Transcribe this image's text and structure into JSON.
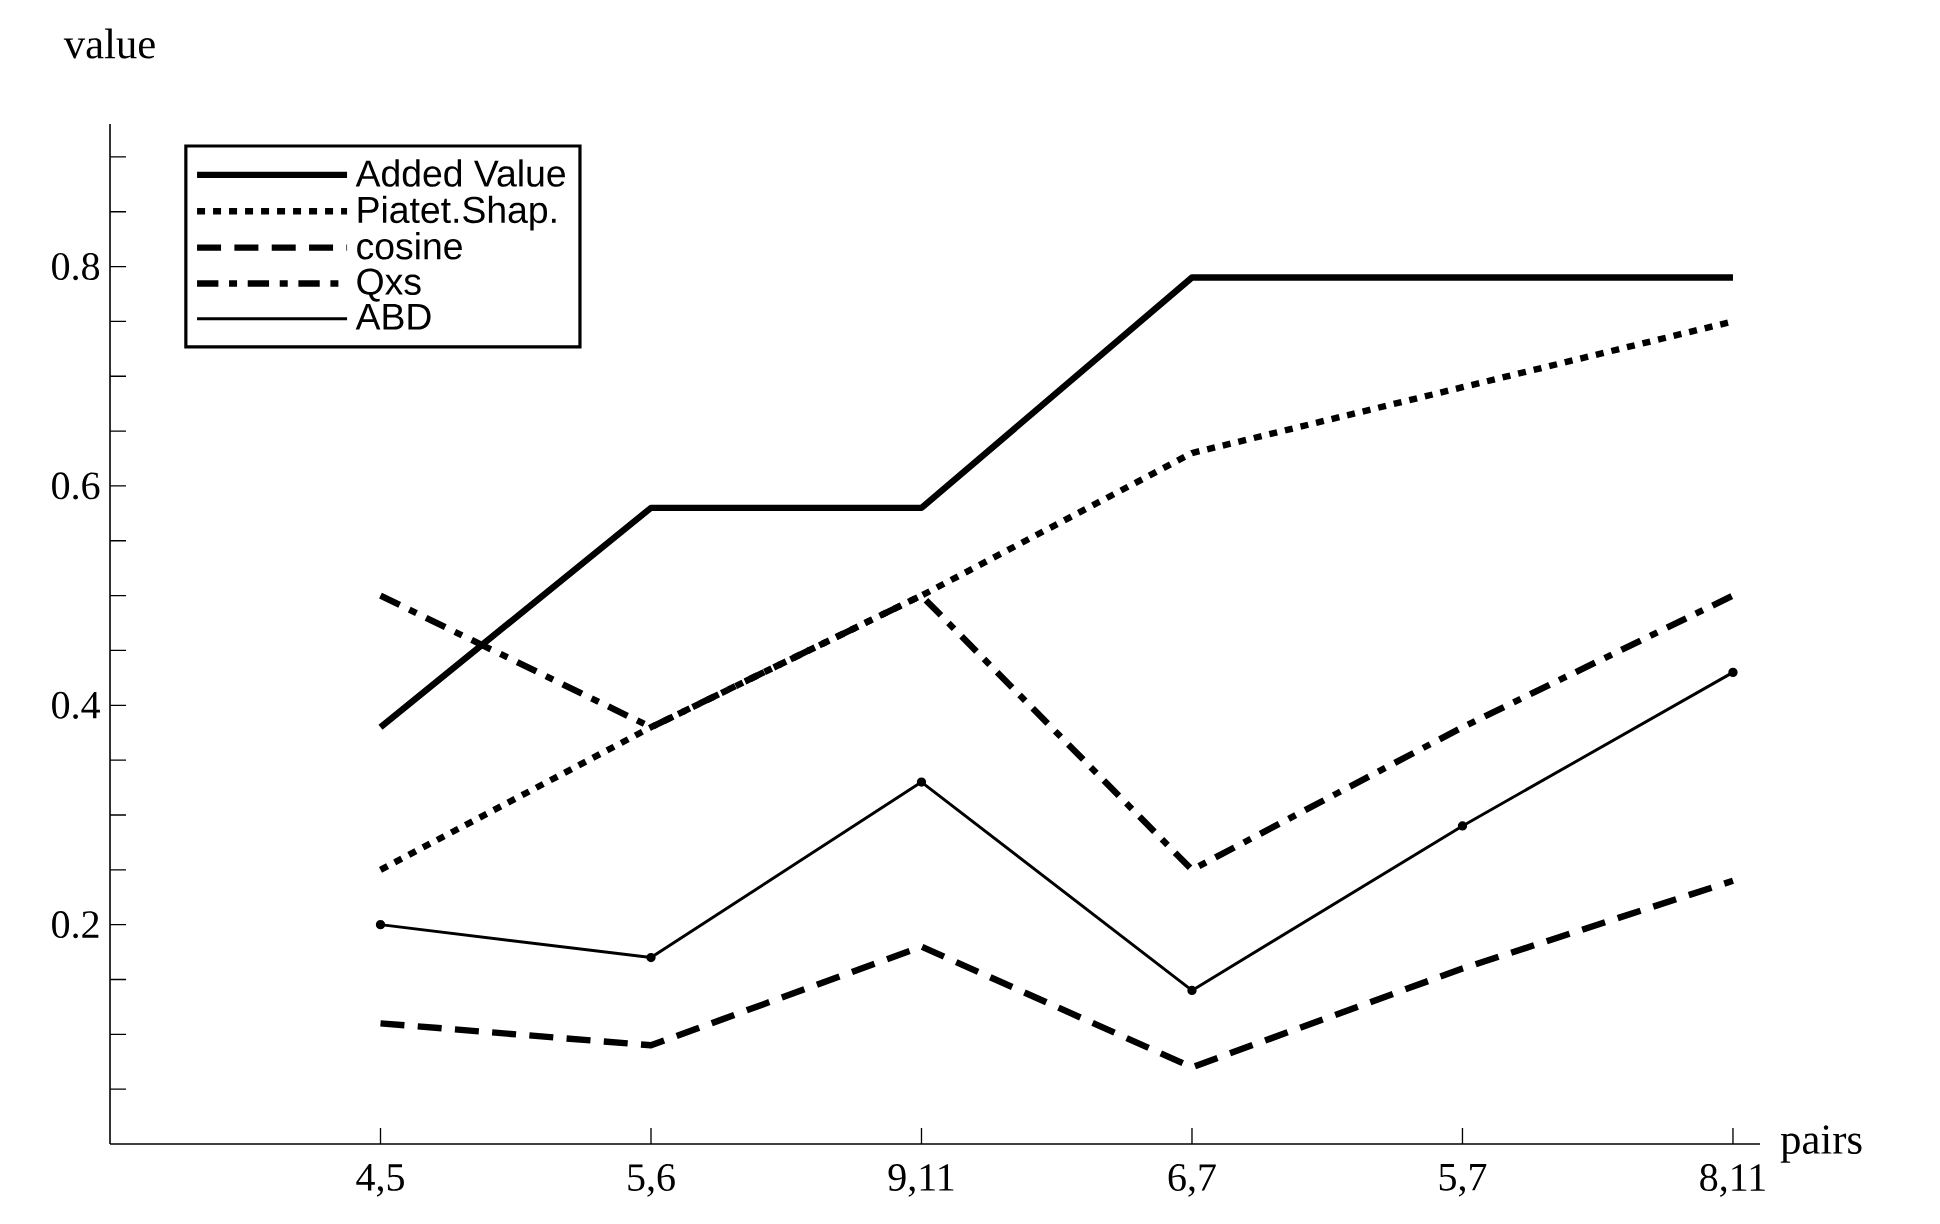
{
  "chart_data": {
    "type": "line",
    "xlabel": "pairs",
    "ylabel": "value",
    "categories": [
      "4,5",
      "5,6",
      "9,11",
      "6,7",
      "5,7",
      "8,11"
    ],
    "series": [
      {
        "name": "Added Value",
        "color": "#000000",
        "line_style": "solid",
        "values": [
          0.38,
          0.58,
          0.58,
          0.79,
          0.79,
          0.79
        ]
      },
      {
        "name": "Piatet.Shap.",
        "color": "#000000",
        "line_style": "dotted",
        "values": [
          0.25,
          0.38,
          0.5,
          0.63,
          0.69,
          0.75
        ]
      },
      {
        "name": "cosine",
        "color": "#000000",
        "line_style": "dashed",
        "values": [
          0.11,
          0.09,
          0.18,
          0.07,
          0.16,
          0.24
        ]
      },
      {
        "name": "Qxs",
        "color": "#000000",
        "line_style": "dashdot",
        "values": [
          0.5,
          0.38,
          0.5,
          0.25,
          0.38,
          0.5
        ]
      },
      {
        "name": "ABD",
        "color": "#000000",
        "line_style": "solid",
        "marker": "circle",
        "values": [
          0.2,
          0.17,
          0.33,
          0.14,
          0.29,
          0.43
        ]
      }
    ],
    "ylim": [
      0,
      0.93
    ],
    "yticks": [
      {
        "value": 0.05,
        "label": null
      },
      {
        "value": 0.1,
        "label": null
      },
      {
        "value": 0.15,
        "label": null
      },
      0.2,
      {
        "value": 0.25,
        "label": null
      },
      {
        "value": 0.3,
        "label": null
      },
      {
        "value": 0.35,
        "label": null
      },
      0.4,
      {
        "value": 0.45,
        "label": null
      },
      {
        "value": 0.5,
        "label": null
      },
      {
        "value": 0.55,
        "label": null
      },
      0.6,
      {
        "value": 0.65,
        "label": null
      },
      {
        "value": 0.7,
        "label": null
      },
      {
        "value": 0.75,
        "label": null
      },
      0.8,
      {
        "value": 0.85,
        "label": null
      },
      {
        "value": 0.9,
        "label": null
      }
    ],
    "legend": "top left",
    "grid": false
  }
}
